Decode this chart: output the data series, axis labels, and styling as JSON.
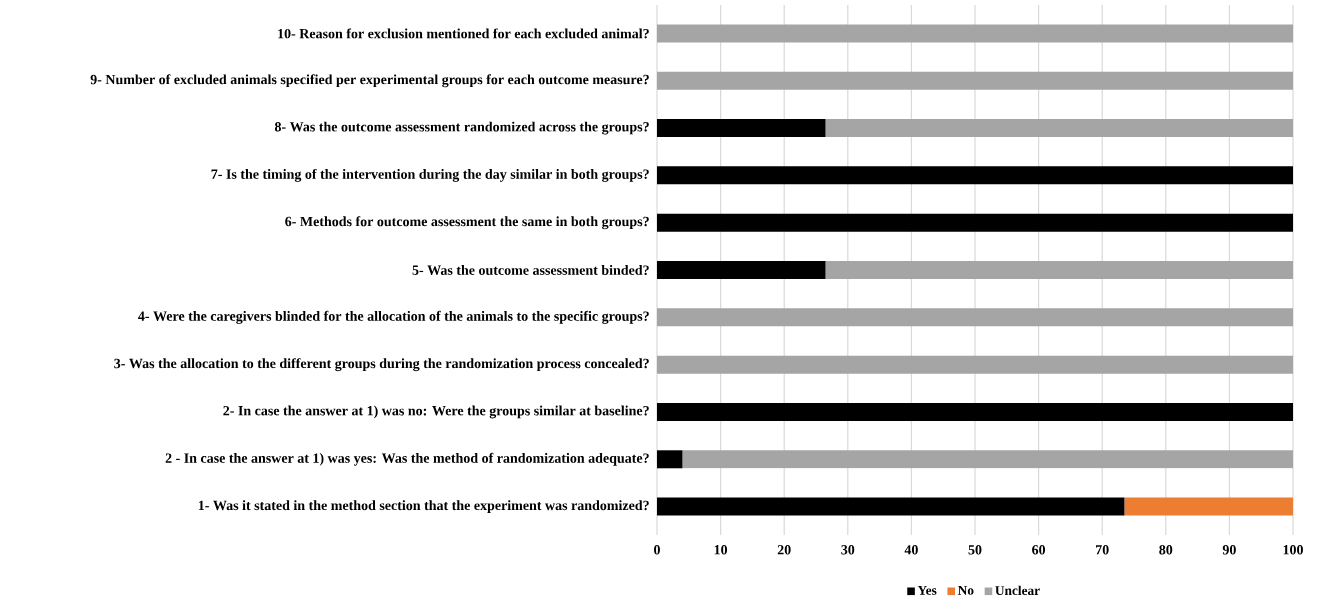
{
  "chart_data": {
    "type": "bar",
    "orientation": "horizontal",
    "stacked": true,
    "categories": [
      "10- Reason for exclusion mentioned for each excluded animal?",
      "9- Number of excluded animals specified per experimental groups for each outcome measure?",
      "8- Was the outcome assessment randomized across the groups?",
      "7- Is the timing of the intervention during the day similar in both groups?",
      "6- Methods for outcome assessment the same in both groups?",
      "5- Was the outcome assessment binded?",
      "4- Were the caregivers blinded for the allocation of the animals to the specific groups?",
      "3-  Was the allocation to the different groups during the randomization process concealed?",
      "2- In case the answer at 1) was no: Were the groups similar at baseline?",
      "2 - In case the answer at 1) was yes: Was the method of randomization adequate?",
      "1- Was it stated in the method section that the experiment was randomized?"
    ],
    "series": [
      {
        "name": "Yes",
        "color": "#000000",
        "values": [
          0,
          0,
          26.5,
          100,
          100,
          26.5,
          0,
          0,
          100,
          4,
          73.5
        ]
      },
      {
        "name": "No",
        "color": "#ed7d31",
        "values": [
          0,
          0,
          0,
          0,
          0,
          0,
          0,
          0,
          0,
          0,
          26.5
        ]
      },
      {
        "name": "Unclear",
        "color": "#a5a5a5",
        "values": [
          100,
          100,
          73.5,
          0,
          0,
          73.5,
          100,
          100,
          0,
          96,
          0
        ]
      }
    ],
    "xlim": [
      0,
      100
    ],
    "xticks": [
      0,
      10,
      20,
      30,
      40,
      50,
      60,
      70,
      80,
      90,
      100
    ],
    "grid": "x",
    "legend": "bottom"
  }
}
